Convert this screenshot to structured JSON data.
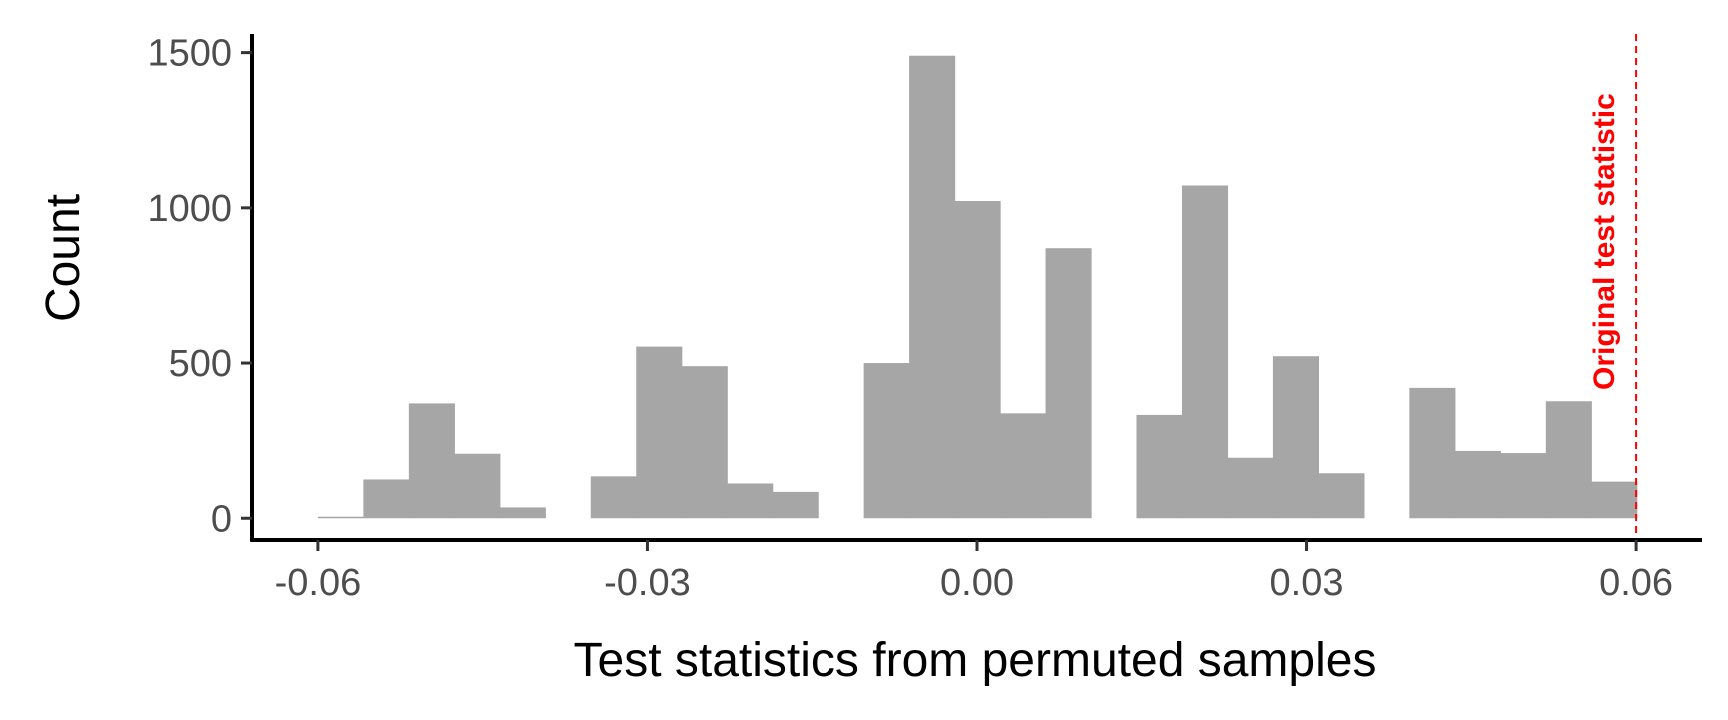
{
  "chart_data": {
    "type": "bar",
    "subtype": "histogram",
    "title": "",
    "xlabel": "Test statistics from permuted samples",
    "ylabel": "Count",
    "xlim": [
      -0.066,
      0.066
    ],
    "ylim": [
      -70,
      1560
    ],
    "x_ticks": [
      -0.06,
      -0.03,
      0.0,
      0.03,
      0.06
    ],
    "x_tick_labels": [
      "-0.06",
      "-0.03",
      "0.00",
      "0.03",
      "0.06"
    ],
    "y_ticks": [
      0,
      500,
      1000,
      1500
    ],
    "y_tick_labels": [
      "0",
      "500",
      "1000",
      "1500"
    ],
    "bin_width": 0.00414,
    "bars": [
      {
        "x0": -0.06,
        "x1": -0.05586,
        "count": 5
      },
      {
        "x0": -0.05586,
        "x1": -0.05172,
        "count": 125
      },
      {
        "x0": -0.05172,
        "x1": -0.04758,
        "count": 370
      },
      {
        "x0": -0.04758,
        "x1": -0.04344,
        "count": 208
      },
      {
        "x0": -0.04344,
        "x1": -0.0393,
        "count": 35
      },
      {
        "x0": -0.03516,
        "x1": -0.03102,
        "count": 135
      },
      {
        "x0": -0.03102,
        "x1": -0.02688,
        "count": 553
      },
      {
        "x0": -0.02688,
        "x1": -0.02274,
        "count": 490
      },
      {
        "x0": -0.02274,
        "x1": -0.0186,
        "count": 112
      },
      {
        "x0": -0.0186,
        "x1": -0.01446,
        "count": 85
      },
      {
        "x0": -0.01032,
        "x1": -0.00618,
        "count": 500
      },
      {
        "x0": -0.00618,
        "x1": -0.00204,
        "count": 1490
      },
      {
        "x0": -0.00204,
        "x1": 0.0021,
        "count": 1022
      },
      {
        "x0": 0.0021,
        "x1": 0.00624,
        "count": 338
      },
      {
        "x0": 0.00624,
        "x1": 0.01038,
        "count": 870
      },
      {
        "x0": 0.01452,
        "x1": 0.01866,
        "count": 333
      },
      {
        "x0": 0.01866,
        "x1": 0.0228,
        "count": 1072
      },
      {
        "x0": 0.0228,
        "x1": 0.02694,
        "count": 195
      },
      {
        "x0": 0.02694,
        "x1": 0.03108,
        "count": 522
      },
      {
        "x0": 0.03108,
        "x1": 0.03522,
        "count": 145
      },
      {
        "x0": 0.03936,
        "x1": 0.0435,
        "count": 420
      },
      {
        "x0": 0.0435,
        "x1": 0.04764,
        "count": 217
      },
      {
        "x0": 0.04764,
        "x1": 0.05178,
        "count": 210
      },
      {
        "x0": 0.05178,
        "x1": 0.05592,
        "count": 377
      },
      {
        "x0": 0.05592,
        "x1": 0.06006,
        "count": 118
      }
    ],
    "bar_color": "#a6a6a6",
    "grid": false,
    "reference_line": {
      "x": 0.06,
      "label": "Original test statistic",
      "color": "#ff0000",
      "style": "dashed"
    }
  }
}
